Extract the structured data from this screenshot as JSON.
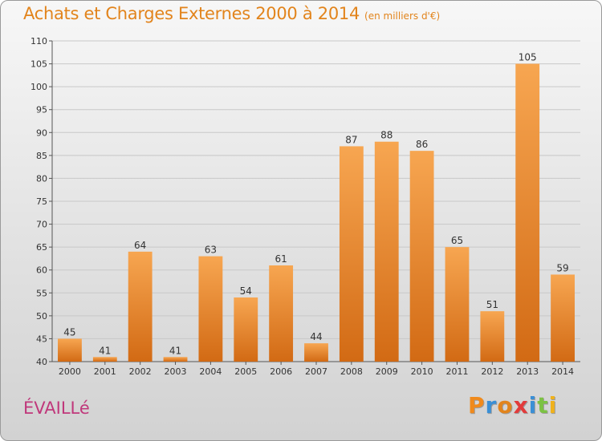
{
  "header": {
    "title": "Achats et Charges Externes 2000 à 2014",
    "subtitle": "(en milliers d'€)"
  },
  "footer": {
    "commune": "ÉVAILLé",
    "logo": "Proxiti"
  },
  "colors": {
    "title": "#e2841c",
    "commune": "#c0387b",
    "bar_top": "#f7a651",
    "bar_bottom": "#d26a14",
    "logo": [
      "#f08a1c",
      "#3a8fd6",
      "#e2841c",
      "#e23b3b",
      "#3a8fd6",
      "#7cc243",
      "#f0b21c"
    ]
  },
  "chart_data": {
    "type": "bar",
    "categories": [
      "2000",
      "2001",
      "2002",
      "2003",
      "2004",
      "2005",
      "2006",
      "2007",
      "2008",
      "2009",
      "2010",
      "2011",
      "2012",
      "2013",
      "2014"
    ],
    "values": [
      45,
      41,
      64,
      41,
      63,
      54,
      61,
      44,
      87,
      88,
      86,
      65,
      51,
      105,
      59
    ],
    "ylim": [
      40,
      110
    ],
    "yticks": [
      40,
      45,
      50,
      55,
      60,
      65,
      70,
      75,
      80,
      85,
      90,
      95,
      100,
      105,
      110
    ],
    "grid": true,
    "xlabel": "",
    "ylabel": ""
  }
}
